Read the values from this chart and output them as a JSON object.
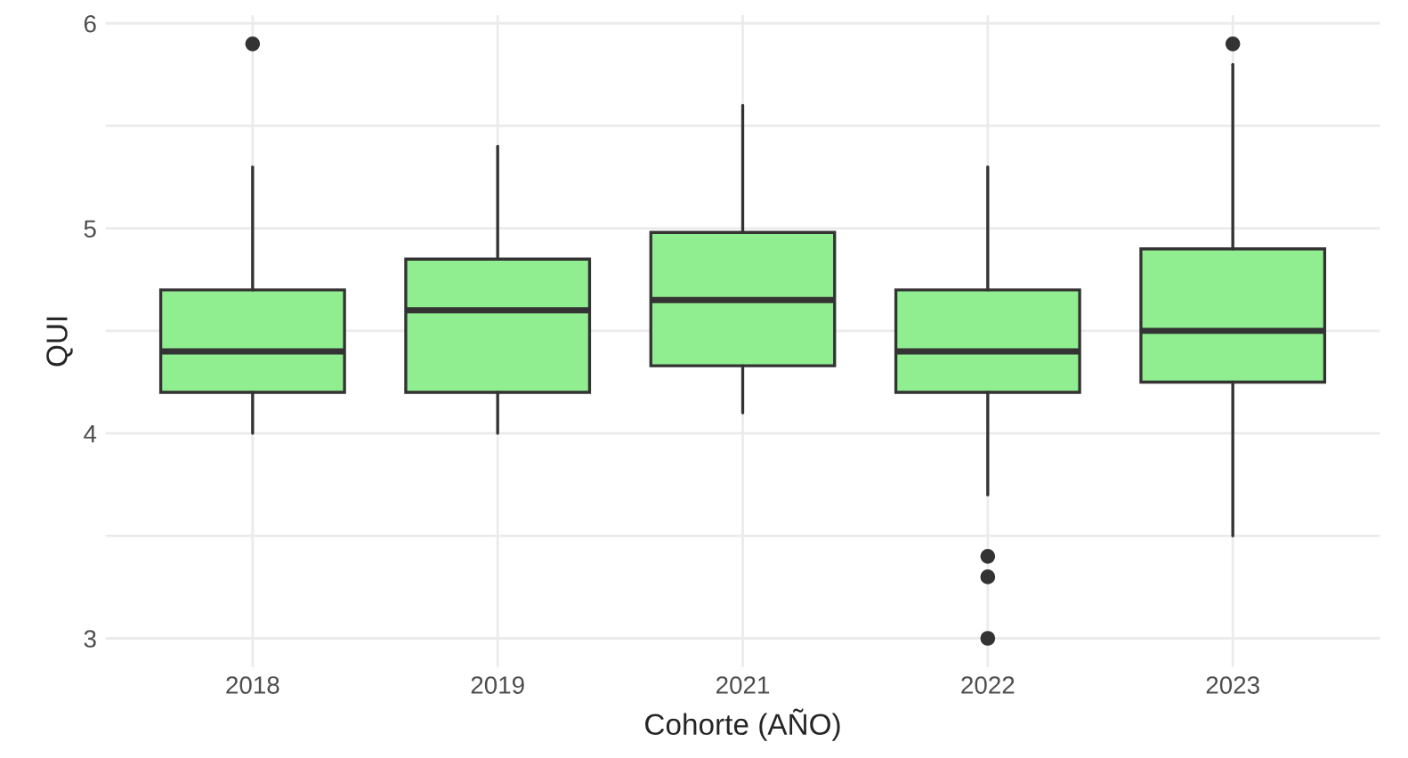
{
  "chart_data": {
    "type": "box",
    "xlabel": "Cohorte (AÑO)",
    "ylabel": "QUI",
    "categories": [
      "2018",
      "2019",
      "2021",
      "2022",
      "2023"
    ],
    "boxes": [
      {
        "low": 4.0,
        "q1": 4.2,
        "median": 4.4,
        "q3": 4.7,
        "high": 5.3,
        "outliers": [
          5.9
        ]
      },
      {
        "low": 4.0,
        "q1": 4.2,
        "median": 4.6,
        "q3": 4.85,
        "high": 5.4
      },
      {
        "low": 4.1,
        "q1": 4.33,
        "median": 4.65,
        "q3": 4.98,
        "high": 5.6
      },
      {
        "low": 3.7,
        "q1": 4.2,
        "median": 4.4,
        "q3": 4.7,
        "high": 5.3,
        "outliers": [
          3.4,
          3.3,
          3.0
        ]
      },
      {
        "low": 3.5,
        "q1": 4.25,
        "median": 4.5,
        "q3": 4.9,
        "high": 5.8,
        "outliers": [
          5.9
        ]
      }
    ],
    "color": "#90ee90",
    "ylim": [
      2.86,
      6.04
    ],
    "yticks": [
      3,
      {
        "value": 3.5,
        "label": null
      },
      4,
      {
        "value": 4.5,
        "label": null
      },
      5,
      {
        "value": 5.5,
        "label": null
      },
      6
    ],
    "grid": true
  }
}
